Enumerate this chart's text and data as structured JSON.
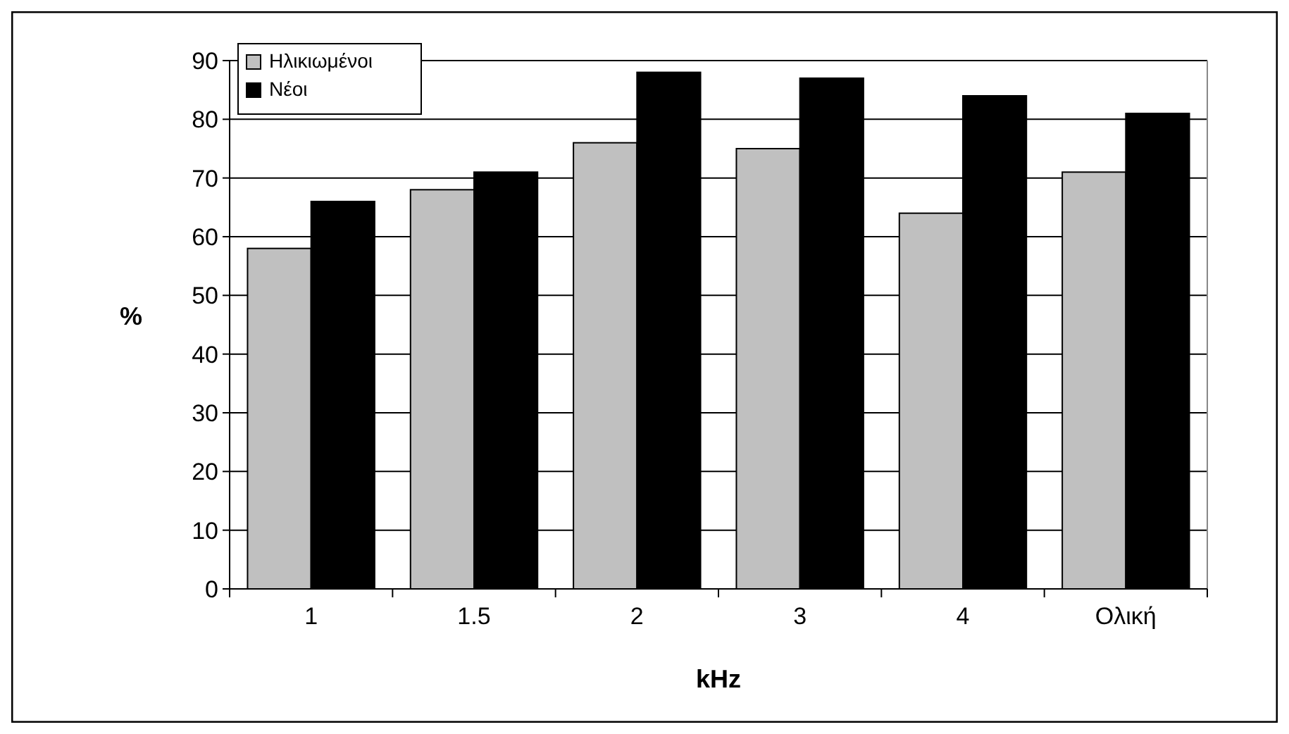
{
  "chart_data": {
    "type": "bar",
    "xlabel": "kHz",
    "ylabel": "%",
    "categories": [
      "1",
      "1.5",
      "2",
      "3",
      "4",
      "Ολική"
    ],
    "series": [
      {
        "name": "Ηλικιωμένοι",
        "color": "#c0c0c0",
        "values": [
          58,
          68,
          76,
          75,
          64,
          71
        ]
      },
      {
        "name": "Νέοι",
        "color": "#000000",
        "values": [
          66,
          71,
          88,
          87,
          84,
          81
        ]
      }
    ],
    "ylim": [
      0,
      90
    ],
    "yticks": [
      0,
      10,
      20,
      30,
      40,
      50,
      60,
      70,
      80,
      90
    ],
    "grid": "y",
    "legend": "top left"
  }
}
